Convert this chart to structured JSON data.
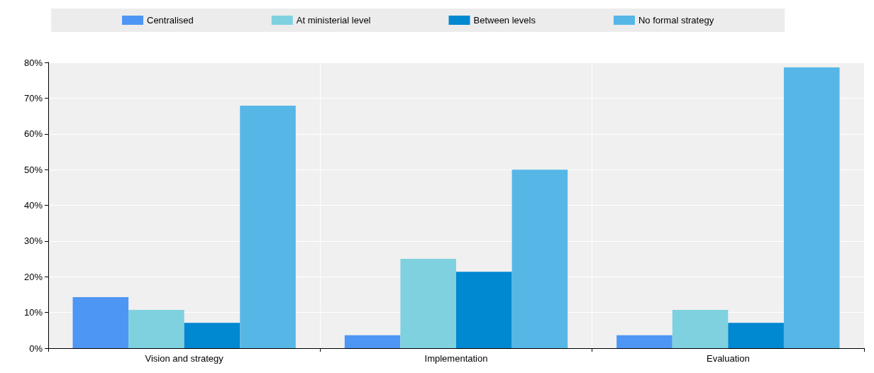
{
  "chart_data": {
    "type": "bar",
    "categories": [
      "Vision and strategy",
      "Implementation",
      "Evaluation"
    ],
    "series": [
      {
        "name": "Centralised",
        "color": "#4e96f4",
        "values": [
          14.3,
          3.6,
          3.6
        ]
      },
      {
        "name": "At ministerial level",
        "color": "#7fd1e0",
        "values": [
          10.7,
          25,
          10.7
        ]
      },
      {
        "name": "Between levels",
        "color": "#0088d0",
        "values": [
          7.1,
          21.4,
          7.1
        ]
      },
      {
        "name": "No formal strategy",
        "color": "#56b7e7",
        "values": [
          67.9,
          50,
          78.6
        ]
      }
    ],
    "ylim": [
      0,
      80
    ],
    "yticks": [
      {
        "value": 0,
        "label": "0%"
      },
      {
        "value": 10,
        "label": "10%"
      },
      {
        "value": 20,
        "label": "20%"
      },
      {
        "value": 30,
        "label": "30%"
      },
      {
        "value": 40,
        "label": "40%"
      },
      {
        "value": 50,
        "label": "50%"
      },
      {
        "value": 60,
        "label": "60%"
      },
      {
        "value": 70,
        "label": "70%"
      },
      {
        "value": 80,
        "label": "80%"
      }
    ],
    "grid": true,
    "legend": "top"
  }
}
